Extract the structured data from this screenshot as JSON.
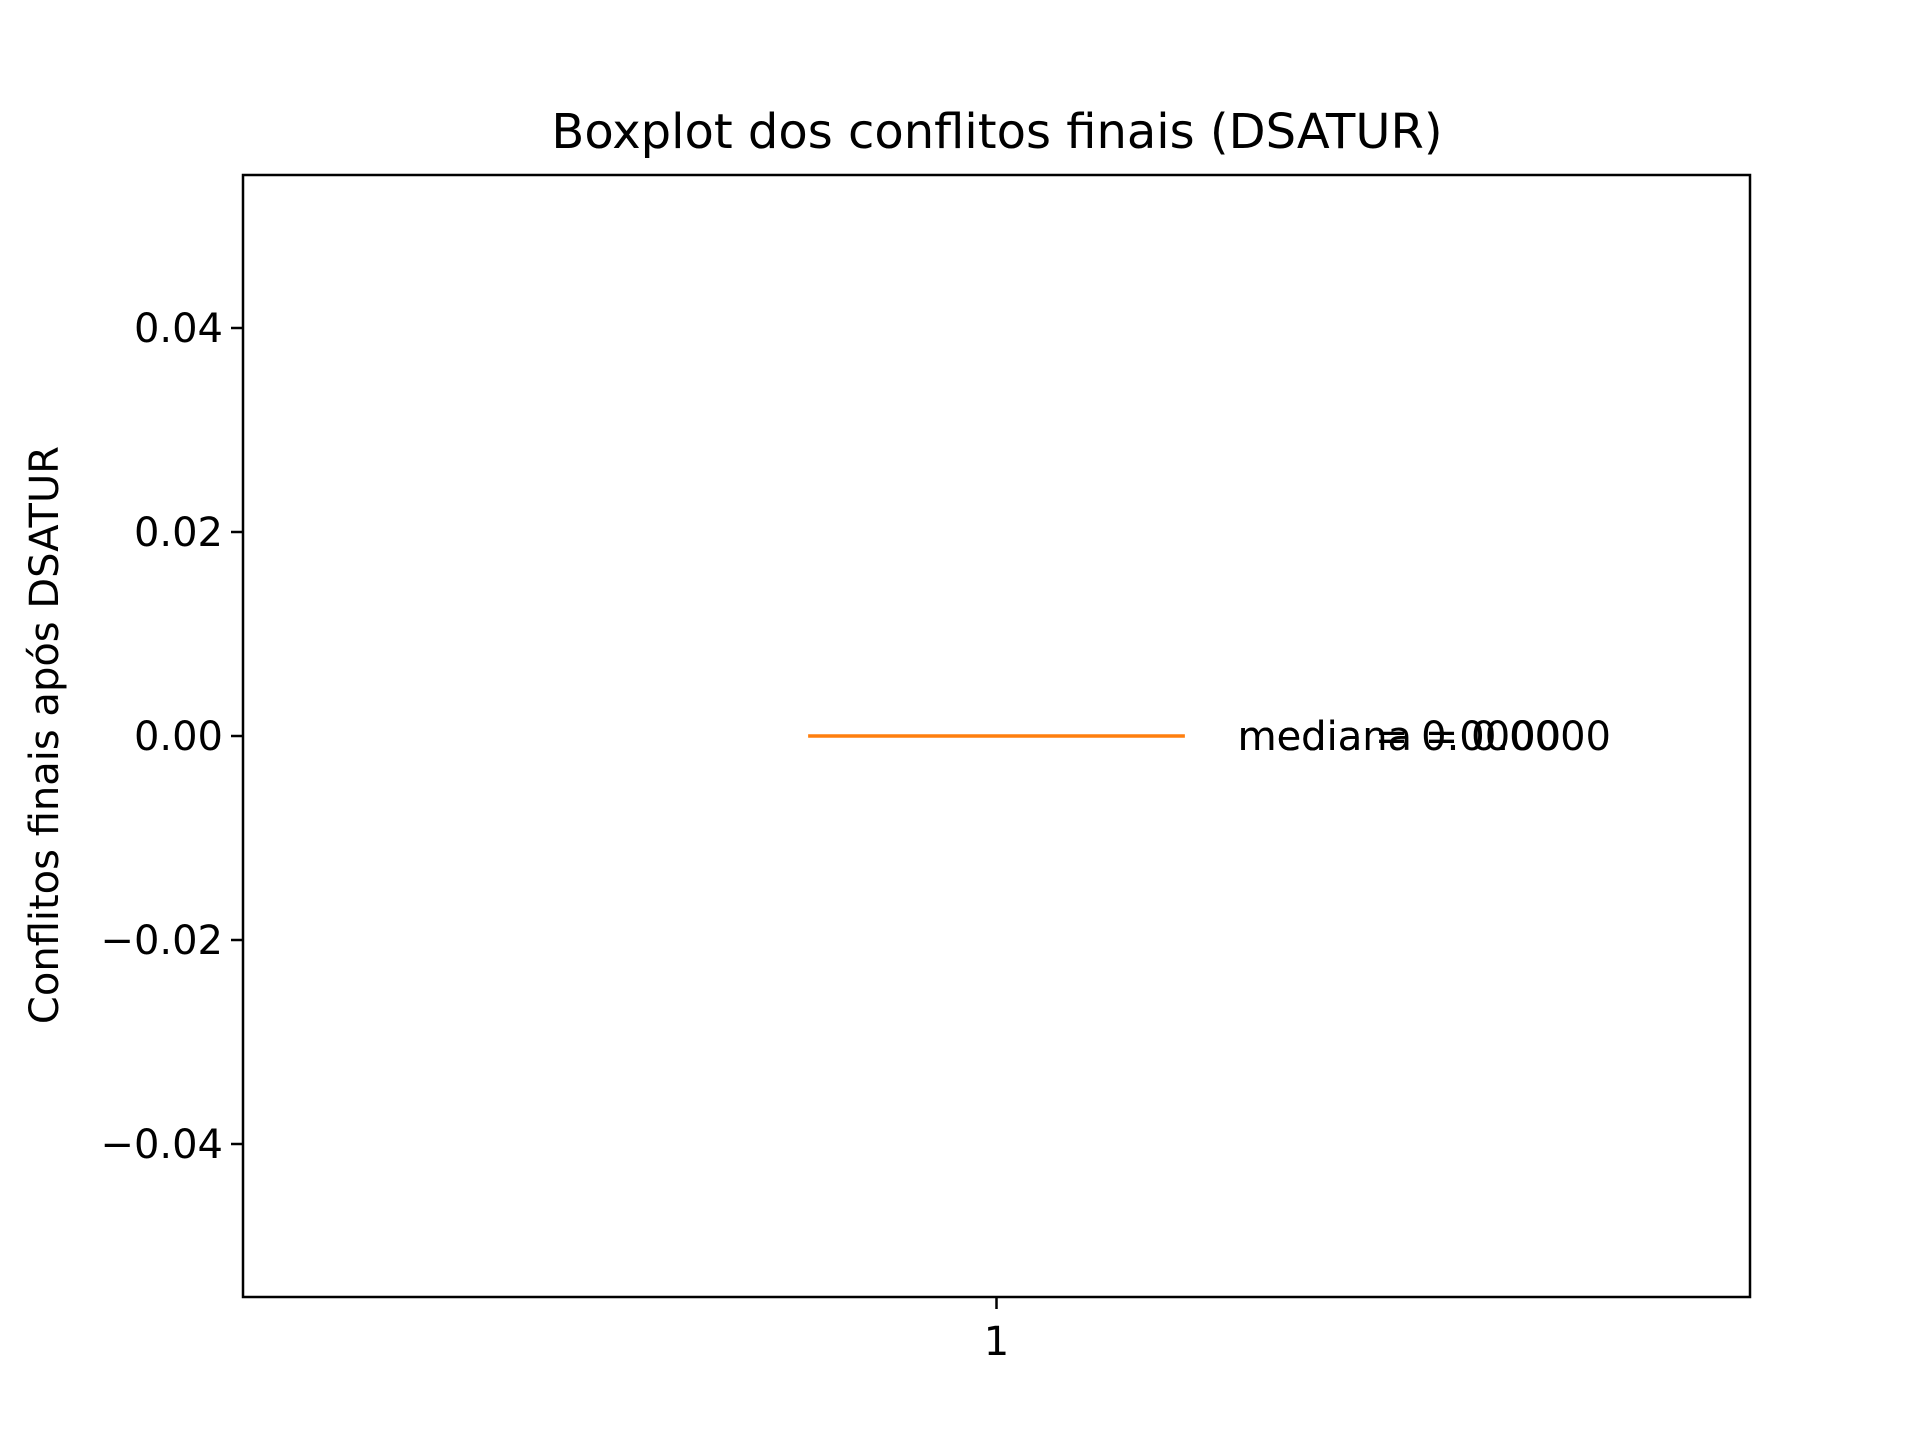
{
  "chart_data": {
    "type": "boxplot",
    "title": "Boxplot dos conflitos finais (DSATUR)",
    "xlabel": "",
    "ylabel": "Conflitos finais após DSATUR",
    "categories": [
      "1"
    ],
    "series": [
      {
        "values": [
          0
        ],
        "stats": {
          "min": 0,
          "q1": 0,
          "median": 0,
          "q3": 0,
          "max": 0,
          "mean": 0
        }
      }
    ],
    "ylim": [
      -0.055,
      0.055
    ],
    "xlim": [
      0.5,
      1.5
    ],
    "yticks": [
      -0.04,
      -0.02,
      0.0,
      0.02,
      0.04
    ],
    "ytick_labels": [
      "−0.04",
      "−0.02",
      "0.00",
      "0.02",
      "0.04"
    ],
    "annotations": [
      {
        "text": "media = 0.0000",
        "x": 1.16,
        "y": 0
      },
      {
        "text": "mediana = 0.0000",
        "x": 1.16,
        "y": 0
      }
    ],
    "grid": false,
    "legend": "none",
    "colors": {
      "median": "#ff7f0e",
      "box": "#000000",
      "axes": "#000000"
    }
  }
}
